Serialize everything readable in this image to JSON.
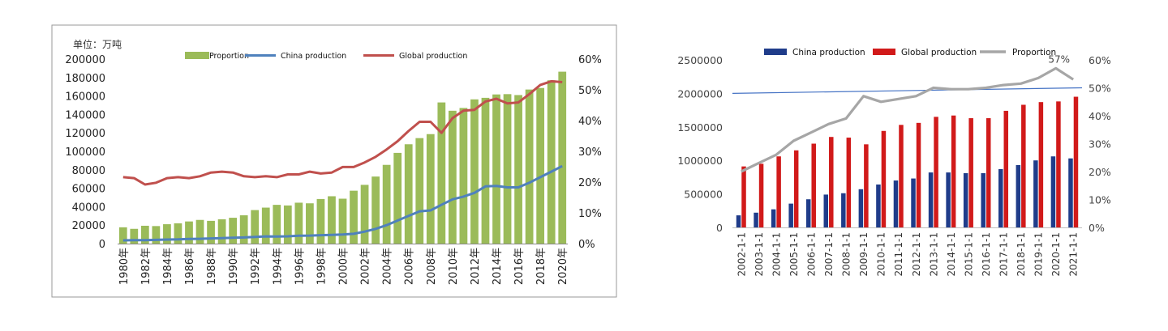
{
  "chart_data": [
    {
      "type": "bar",
      "unit_label": "单位：万吨",
      "categories": [
        "1980年",
        "1981年",
        "1982年",
        "1983年",
        "1984年",
        "1985年",
        "1986年",
        "1987年",
        "1988年",
        "1989年",
        "1990年",
        "1991年",
        "1992年",
        "1993年",
        "1994年",
        "1995年",
        "1996年",
        "1997年",
        "1998年",
        "1999年",
        "2000年",
        "2001年",
        "2002年",
        "2003年",
        "2004年",
        "2005年",
        "2006年",
        "2007年",
        "2008年",
        "2009年",
        "2010年",
        "2011年",
        "2012年",
        "2013年",
        "2014年",
        "2015年",
        "2016年",
        "2017年",
        "2018年",
        "2019年",
        "2020年"
      ],
      "tick_labels": [
        "1980年",
        "1982年",
        "1984年",
        "1986年",
        "1988年",
        "1990年",
        "1992年",
        "1994年",
        "1996年",
        "1998年",
        "2000年",
        "2002年",
        "2004年",
        "2006年",
        "2008年",
        "2010年",
        "2012年",
        "2014年",
        "2016年",
        "2018年",
        "2020年"
      ],
      "series": [
        {
          "name": "Proportion",
          "kind": "bar",
          "axis": "right",
          "color": "#9bbb59",
          "values": [
            5.3,
            4.8,
            5.8,
            5.7,
            6.3,
            6.6,
            7.2,
            7.7,
            7.4,
            7.9,
            8.4,
            9.2,
            10.9,
            11.7,
            12.6,
            12.4,
            13.3,
            13.1,
            14.5,
            15.4,
            14.6,
            17.2,
            19.1,
            21.8,
            25.6,
            29.5,
            32.3,
            34.3,
            35.6,
            45.9,
            43.2,
            44.1,
            46.9,
            47.4,
            48.5,
            48.6,
            48.3,
            50.1,
            50.6,
            53.1,
            55.9
          ]
        },
        {
          "name": "China production",
          "kind": "line",
          "axis": "left",
          "color": "#4f81bd",
          "values": [
            3500,
            3700,
            3800,
            4000,
            4400,
            4600,
            5000,
            5200,
            5600,
            6000,
            6400,
            6700,
            7300,
            7800,
            7700,
            7900,
            8500,
            8700,
            9100,
            9500,
            9900,
            10600,
            13000,
            16000,
            20000,
            25000,
            30000,
            35000,
            36000,
            42000,
            48000,
            51000,
            55000,
            62000,
            62500,
            61000,
            61000,
            66000,
            72000,
            78000,
            84000
          ]
        },
        {
          "name": "Global production",
          "kind": "line",
          "axis": "left",
          "color": "#c0504d",
          "values": [
            72000,
            71000,
            64000,
            66000,
            71000,
            72000,
            71000,
            73000,
            77000,
            78000,
            77000,
            73000,
            72000,
            73000,
            72000,
            75000,
            75000,
            78000,
            76000,
            77000,
            83000,
            83000,
            88000,
            94000,
            102000,
            111000,
            122000,
            132000,
            132000,
            120000,
            136000,
            144000,
            145000,
            154000,
            157000,
            152000,
            153000,
            162000,
            172000,
            176000,
            175000
          ]
        }
      ],
      "y_left": {
        "min": 0,
        "max": 200000,
        "ticks": [
          "0",
          "20000",
          "40000",
          "60000",
          "80000",
          "100000",
          "120000",
          "140000",
          "160000",
          "180000",
          "200000"
        ]
      },
      "y_right": {
        "min": 0,
        "max": 60,
        "ticks": [
          "0%",
          "10%",
          "20%",
          "30%",
          "40%",
          "50%",
          "60%"
        ]
      },
      "legend_position": "top",
      "grid": false
    },
    {
      "type": "bar",
      "categories": [
        "2002-1-1",
        "2003-1-1",
        "2004-1-1",
        "2005-1-1",
        "2006-1-1",
        "2007-1-1",
        "2008-1-1",
        "2009-1-1",
        "2010-1-1",
        "2011-1-1",
        "2012-1-1",
        "2013-1-1",
        "2014-1-1",
        "2015-1-1",
        "2016-1-1",
        "2017-1-1",
        "2018-1-1",
        "2019-1-1",
        "2020-1-1",
        "2021-1-1"
      ],
      "series": [
        {
          "name": "China production",
          "kind": "bar",
          "axis": "left",
          "color": "#1f3c8a",
          "values": [
            180000,
            220000,
            270000,
            355000,
            420000,
            490000,
            510000,
            570000,
            640000,
            700000,
            730000,
            820000,
            820000,
            810000,
            810000,
            870000,
            930000,
            1000000,
            1060000,
            1030000
          ]
        },
        {
          "name": "Global production",
          "kind": "bar",
          "axis": "left",
          "color": "#d11a1a",
          "values": [
            910000,
            950000,
            1060000,
            1150000,
            1250000,
            1350000,
            1340000,
            1240000,
            1440000,
            1530000,
            1560000,
            1650000,
            1670000,
            1630000,
            1630000,
            1740000,
            1830000,
            1870000,
            1880000,
            1950000
          ]
        },
        {
          "name": "Proportion",
          "kind": "line",
          "axis": "right",
          "color": "#a6a6a6",
          "values": [
            20,
            23,
            26,
            31,
            34,
            37,
            39,
            47,
            45,
            46,
            47,
            50,
            49.5,
            49.5,
            50,
            51,
            51.5,
            53.5,
            57,
            53
          ]
        }
      ],
      "trendline": {
        "color": "#4472c4",
        "start": 48,
        "end": 50
      },
      "annotation": "57%",
      "y_left": {
        "min": 0,
        "max": 2500000,
        "ticks": [
          "0",
          "500000",
          "1000000",
          "1500000",
          "2000000",
          "2500000"
        ]
      },
      "y_right": {
        "min": 0,
        "max": 60,
        "ticks": [
          "0%",
          "10%",
          "20%",
          "30%",
          "40%",
          "50%",
          "60%"
        ]
      },
      "legend_position": "top",
      "grid": false
    }
  ]
}
